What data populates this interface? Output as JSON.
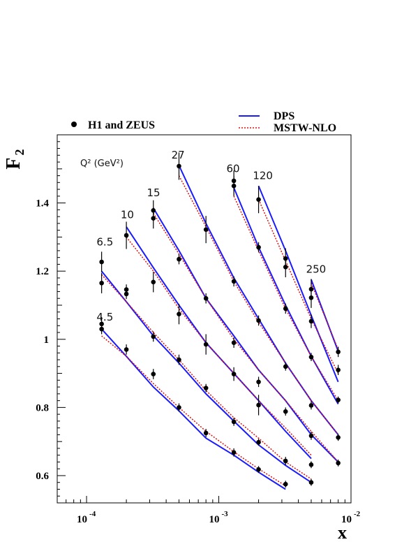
{
  "chart_data": {
    "type": "scatter",
    "title": "",
    "xlabel": "x",
    "ylabel": "F",
    "ylabel_sub": "2",
    "x_scale": "log",
    "xlim": [
      6e-05,
      0.01
    ],
    "ylim": [
      0.52,
      1.6
    ],
    "x_ticks": [
      {
        "base": "10",
        "exp": "-4",
        "value": 0.0001
      },
      {
        "base": "10",
        "exp": "-3",
        "value": 0.001
      },
      {
        "base": "10",
        "exp": "-2",
        "value": 0.01
      }
    ],
    "y_ticks": [
      {
        "label": "0.6",
        "value": 0.6
      },
      {
        "label": "0.8",
        "value": 0.8
      },
      {
        "label": "1",
        "value": 1.0
      },
      {
        "label": "1.2",
        "value": 1.2
      },
      {
        "label": "1.4",
        "value": 1.4
      }
    ],
    "q2_axis_label": "Q² (GeV²)",
    "legend": {
      "placement": "top",
      "points_label": "H1 and ZEUS",
      "dps_label": "DPS",
      "mstw_label": "MSTW-NLO",
      "dps_color": "#1a1aff",
      "mstw_color": "#dd1111"
    },
    "series": [
      {
        "q2": "4.5",
        "label_at": [
          0.000125,
          1.055
        ],
        "data": [
          {
            "x": 0.00013,
            "y": 1.045,
            "err": 0.02
          },
          {
            "x": 0.00013,
            "y": 1.03,
            "err": 0.015
          },
          {
            "x": 0.0002,
            "y": 0.97,
            "err": 0.015
          },
          {
            "x": 0.00032,
            "y": 0.898,
            "err": 0.015
          },
          {
            "x": 0.0005,
            "y": 0.8,
            "err": 0.012
          },
          {
            "x": 0.0008,
            "y": 0.725,
            "err": 0.012
          },
          {
            "x": 0.0013,
            "y": 0.668,
            "err": 0.012
          },
          {
            "x": 0.002,
            "y": 0.618,
            "err": 0.01
          },
          {
            "x": 0.0032,
            "y": 0.575,
            "err": 0.01
          }
        ],
        "dps": [
          [
            0.00013,
            1.03
          ],
          [
            0.0002,
            0.95
          ],
          [
            0.00032,
            0.86
          ],
          [
            0.0005,
            0.79
          ],
          [
            0.0008,
            0.71
          ],
          [
            0.0013,
            0.66
          ],
          [
            0.002,
            0.61
          ],
          [
            0.0032,
            0.56
          ]
        ],
        "mstw": [
          [
            0.00013,
            1.01
          ],
          [
            0.0002,
            0.95
          ],
          [
            0.00032,
            0.87
          ],
          [
            0.0005,
            0.8
          ],
          [
            0.0008,
            0.73
          ],
          [
            0.0013,
            0.67
          ],
          [
            0.002,
            0.62
          ],
          [
            0.0032,
            0.57
          ]
        ]
      },
      {
        "q2": "6.5",
        "label_at": [
          0.000125,
          1.275
        ],
        "data": [
          {
            "x": 0.00013,
            "y": 1.227,
            "err": 0.03
          },
          {
            "x": 0.00013,
            "y": 1.165,
            "err": 0.03
          },
          {
            "x": 0.0002,
            "y": 1.146,
            "err": 0.015
          },
          {
            "x": 0.0002,
            "y": 1.133,
            "err": 0.015
          },
          {
            "x": 0.00032,
            "y": 1.168,
            "err": 0.03
          },
          {
            "x": 0.00032,
            "y": 1.008,
            "err": 0.015
          },
          {
            "x": 0.0005,
            "y": 0.94,
            "err": 0.015
          },
          {
            "x": 0.0008,
            "y": 0.857,
            "err": 0.012
          },
          {
            "x": 0.0013,
            "y": 0.758,
            "err": 0.012
          },
          {
            "x": 0.002,
            "y": 0.698,
            "err": 0.01
          },
          {
            "x": 0.0032,
            "y": 0.643,
            "err": 0.012
          },
          {
            "x": 0.005,
            "y": 0.58,
            "err": 0.01
          }
        ],
        "dps": [
          [
            0.00013,
            1.2
          ],
          [
            0.0002,
            1.11
          ],
          [
            0.00032,
            1.01
          ],
          [
            0.0005,
            0.93
          ],
          [
            0.0008,
            0.84
          ],
          [
            0.0013,
            0.76
          ],
          [
            0.002,
            0.69
          ],
          [
            0.0032,
            0.63
          ],
          [
            0.005,
            0.58
          ]
        ],
        "mstw": [
          [
            0.00013,
            1.19
          ],
          [
            0.0002,
            1.11
          ],
          [
            0.00032,
            1.02
          ],
          [
            0.0005,
            0.94
          ],
          [
            0.0008,
            0.85
          ],
          [
            0.0013,
            0.77
          ],
          [
            0.002,
            0.71
          ],
          [
            0.0032,
            0.64
          ],
          [
            0.005,
            0.59
          ]
        ]
      },
      {
        "q2": "10",
        "label_at": [
          0.00019,
          1.355
        ],
        "data": [
          {
            "x": 0.0002,
            "y": 1.305,
            "err": 0.04
          },
          {
            "x": 0.0005,
            "y": 1.074,
            "err": 0.03
          },
          {
            "x": 0.0008,
            "y": 0.985,
            "err": 0.03
          },
          {
            "x": 0.0013,
            "y": 0.898,
            "err": 0.02
          },
          {
            "x": 0.002,
            "y": 0.807,
            "err": 0.03
          },
          {
            "x": 0.0032,
            "y": 0.788,
            "err": 0.012
          },
          {
            "x": 0.005,
            "y": 0.632,
            "err": 0.01
          }
        ],
        "dps": [
          [
            0.0002,
            1.33
          ],
          [
            0.00032,
            1.21
          ],
          [
            0.0005,
            1.1
          ],
          [
            0.0008,
            0.99
          ],
          [
            0.0013,
            0.9
          ],
          [
            0.002,
            0.82
          ],
          [
            0.0032,
            0.73
          ],
          [
            0.005,
            0.65
          ]
        ],
        "mstw": [
          [
            0.0002,
            1.3
          ],
          [
            0.00032,
            1.2
          ],
          [
            0.0005,
            1.09
          ],
          [
            0.0008,
            0.99
          ],
          [
            0.0013,
            0.9
          ],
          [
            0.002,
            0.82
          ],
          [
            0.0032,
            0.74
          ],
          [
            0.005,
            0.66
          ]
        ]
      },
      {
        "q2": "15",
        "label_at": [
          0.0003,
          1.42
        ],
        "data": [
          {
            "x": 0.00032,
            "y": 1.378,
            "err": 0.03
          },
          {
            "x": 0.00032,
            "y": 1.355,
            "err": 0.03
          },
          {
            "x": 0.0005,
            "y": 1.235,
            "err": 0.015
          },
          {
            "x": 0.0008,
            "y": 1.12,
            "err": 0.015
          },
          {
            "x": 0.0013,
            "y": 0.99,
            "err": 0.015
          },
          {
            "x": 0.002,
            "y": 0.875,
            "err": 0.015
          },
          {
            "x": 0.005,
            "y": 0.717,
            "err": 0.012
          },
          {
            "x": 0.008,
            "y": 0.637,
            "err": 0.01
          }
        ],
        "dps": [
          [
            0.00032,
            1.385
          ],
          [
            0.0005,
            1.26
          ],
          [
            0.0008,
            1.12
          ],
          [
            0.0013,
            1.01
          ],
          [
            0.002,
            0.91
          ],
          [
            0.0032,
            0.82
          ],
          [
            0.005,
            0.72
          ],
          [
            0.008,
            0.64
          ]
        ],
        "mstw": [
          [
            0.00032,
            1.37
          ],
          [
            0.0005,
            1.25
          ],
          [
            0.0008,
            1.12
          ],
          [
            0.0013,
            1.0
          ],
          [
            0.002,
            0.91
          ],
          [
            0.0032,
            0.82
          ],
          [
            0.005,
            0.73
          ],
          [
            0.008,
            0.64
          ]
        ]
      },
      {
        "q2": "27",
        "label_at": [
          0.00046,
          1.53
        ],
        "data": [
          {
            "x": 0.0005,
            "y": 1.508,
            "err": 0.04
          },
          {
            "x": 0.0008,
            "y": 1.322,
            "err": 0.04
          },
          {
            "x": 0.0013,
            "y": 1.17,
            "err": 0.015
          },
          {
            "x": 0.002,
            "y": 1.055,
            "err": 0.015
          },
          {
            "x": 0.0032,
            "y": 0.92,
            "err": 0.012
          },
          {
            "x": 0.005,
            "y": 0.806,
            "err": 0.012
          },
          {
            "x": 0.008,
            "y": 0.712,
            "err": 0.01
          }
        ],
        "dps": [
          [
            0.0005,
            1.51
          ],
          [
            0.0008,
            1.34
          ],
          [
            0.0013,
            1.18
          ],
          [
            0.002,
            1.06
          ],
          [
            0.0032,
            0.93
          ],
          [
            0.005,
            0.82
          ],
          [
            0.008,
            0.72
          ]
        ],
        "mstw": [
          [
            0.0005,
            1.48
          ],
          [
            0.0008,
            1.33
          ],
          [
            0.0013,
            1.17
          ],
          [
            0.002,
            1.05
          ],
          [
            0.0032,
            0.93
          ],
          [
            0.005,
            0.82
          ],
          [
            0.008,
            0.72
          ]
        ]
      },
      {
        "q2": "60",
        "label_at": [
          0.0012,
          1.49
        ],
        "data": [
          {
            "x": 0.0013,
            "y": 1.465,
            "err": 0.03
          },
          {
            "x": 0.0013,
            "y": 1.45,
            "err": 0.03
          },
          {
            "x": 0.002,
            "y": 1.27,
            "err": 0.015
          },
          {
            "x": 0.0032,
            "y": 1.09,
            "err": 0.015
          },
          {
            "x": 0.005,
            "y": 0.948,
            "err": 0.012
          },
          {
            "x": 0.008,
            "y": 0.822,
            "err": 0.01
          }
        ],
        "dps": [
          [
            0.0013,
            1.445
          ],
          [
            0.002,
            1.27
          ],
          [
            0.0032,
            1.1
          ],
          [
            0.005,
            0.95
          ],
          [
            0.008,
            0.81
          ]
        ],
        "mstw": [
          [
            0.0013,
            1.42
          ],
          [
            0.002,
            1.26
          ],
          [
            0.0032,
            1.09
          ],
          [
            0.005,
            0.95
          ],
          [
            0.008,
            0.82
          ]
        ]
      },
      {
        "q2": "120",
        "label_at": [
          0.0019,
          1.47
        ],
        "data": [
          {
            "x": 0.002,
            "y": 1.41,
            "err": 0.04
          },
          {
            "x": 0.0032,
            "y": 1.237,
            "err": 0.03
          },
          {
            "x": 0.0032,
            "y": 1.212,
            "err": 0.03
          },
          {
            "x": 0.005,
            "y": 1.053,
            "err": 0.02
          },
          {
            "x": 0.008,
            "y": 0.91,
            "err": 0.015
          }
        ],
        "dps": [
          [
            0.002,
            1.45
          ],
          [
            0.0032,
            1.26
          ],
          [
            0.005,
            1.07
          ],
          [
            0.008,
            0.875
          ]
        ],
        "mstw": [
          [
            0.002,
            1.41
          ],
          [
            0.0032,
            1.23
          ],
          [
            0.005,
            1.06
          ],
          [
            0.008,
            0.9
          ]
        ]
      },
      {
        "q2": "250",
        "label_at": [
          0.0048,
          1.195
        ],
        "data": [
          {
            "x": 0.005,
            "y": 1.147,
            "err": 0.03
          },
          {
            "x": 0.005,
            "y": 1.122,
            "err": 0.03
          },
          {
            "x": 0.008,
            "y": 0.963,
            "err": 0.015
          }
        ],
        "dps": [
          [
            0.005,
            1.175
          ],
          [
            0.008,
            0.965
          ]
        ],
        "mstw": [
          [
            0.005,
            1.165
          ],
          [
            0.008,
            0.97
          ]
        ]
      }
    ]
  }
}
